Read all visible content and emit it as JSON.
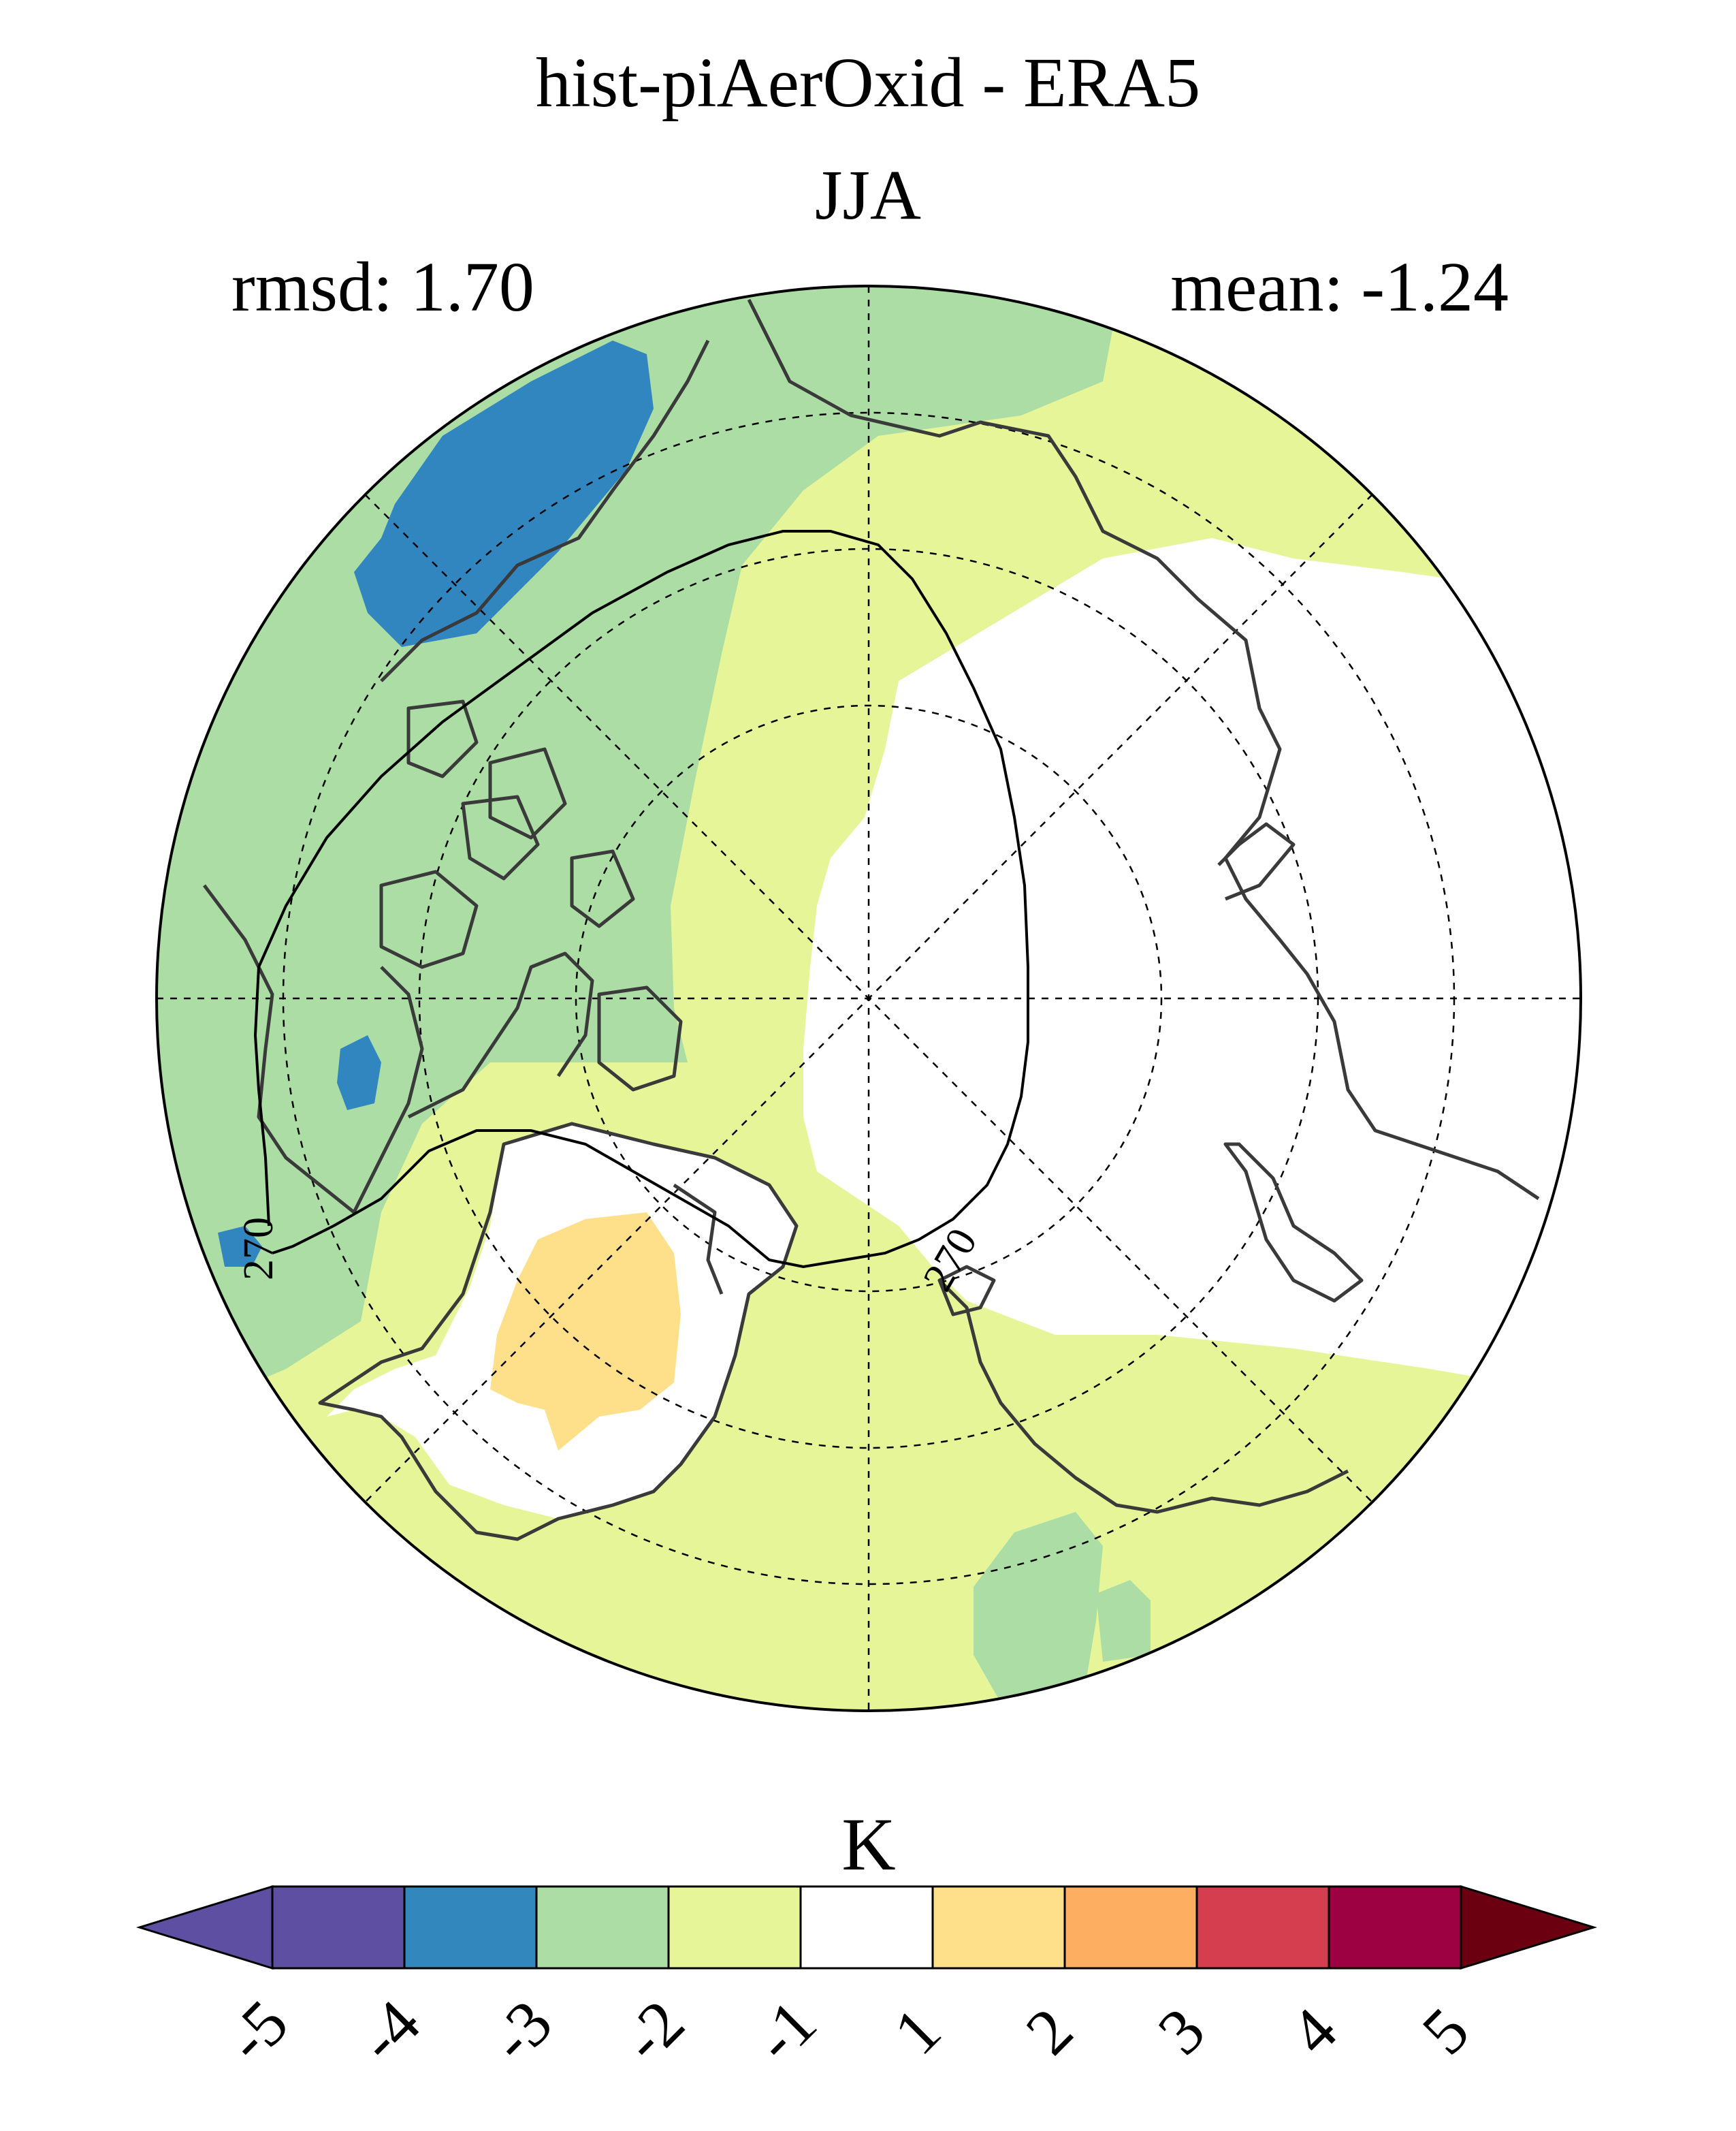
{
  "title": {
    "main": "hist-piAerOxid - ERA5",
    "season": "JJA",
    "rmsd": "rmsd: 1.70",
    "mean": "mean: -1.24"
  },
  "map": {
    "projection": "north-polar-stereographic",
    "contour_level": "270",
    "contour_labels": [
      "270",
      "270"
    ],
    "region_colors": {
      "dark_blue": "#3186c0",
      "green": "#abdda4",
      "light_green": "#e6f598",
      "white": "#ffffff",
      "light_orange": "#fee08b"
    }
  },
  "colorbar": {
    "unit": "K",
    "tick_labels": [
      "-5",
      "-4",
      "-3",
      "-2",
      "-1",
      "1",
      "2",
      "3",
      "4",
      "5"
    ],
    "colors": [
      "#5e4fa2",
      "#5e4fa2",
      "#3288bd",
      "#abdda4",
      "#e6f598",
      "#ffffff",
      "#fee08b",
      "#fdae61",
      "#d53e4f",
      "#9e0142",
      "#6b0011"
    ]
  }
}
